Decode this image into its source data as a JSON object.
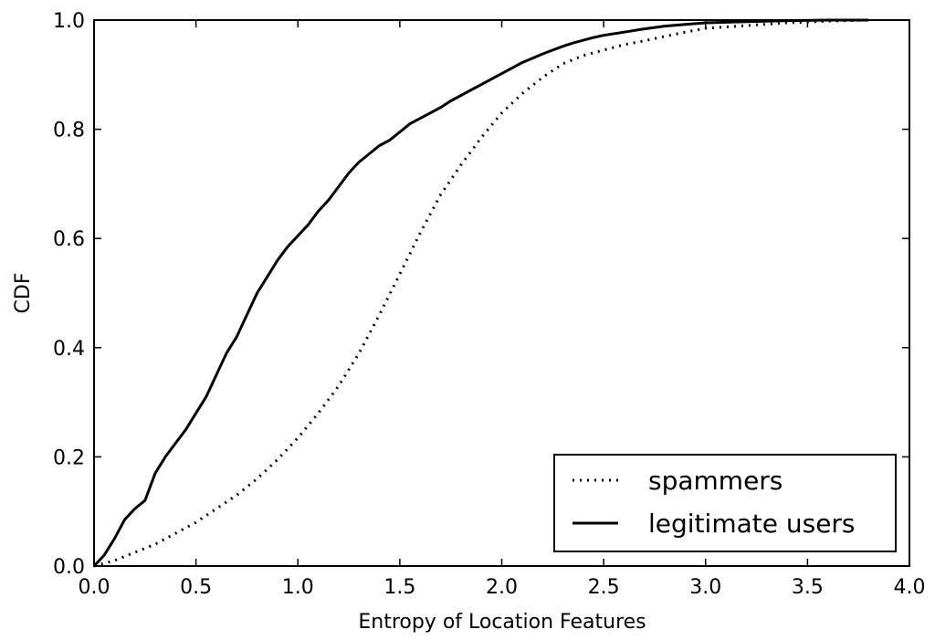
{
  "chart_data": {
    "type": "line",
    "title": "",
    "xlabel": "Entropy of Location Features",
    "ylabel": "CDF",
    "xlim": [
      0.0,
      4.0
    ],
    "ylim": [
      0.0,
      1.0
    ],
    "xticks": [
      "0.0",
      "0.5",
      "1.0",
      "1.5",
      "2.0",
      "2.5",
      "3.0",
      "3.5",
      "4.0"
    ],
    "yticks": [
      "0.0",
      "0.2",
      "0.4",
      "0.6",
      "0.8",
      "1.0"
    ],
    "grid": false,
    "legend": "lower-right",
    "series": [
      {
        "name": "spammers",
        "style": "dotted",
        "color": "#000000",
        "x": [
          0.0,
          0.1,
          0.2,
          0.3,
          0.4,
          0.5,
          0.6,
          0.7,
          0.8,
          0.9,
          1.0,
          1.1,
          1.2,
          1.3,
          1.4,
          1.5,
          1.6,
          1.7,
          1.8,
          1.9,
          2.0,
          2.1,
          2.2,
          2.3,
          2.4,
          2.5,
          2.6,
          2.7,
          2.8,
          2.9,
          3.0,
          3.2,
          3.4,
          3.6,
          3.8
        ],
        "y": [
          0.0,
          0.01,
          0.025,
          0.04,
          0.06,
          0.08,
          0.105,
          0.13,
          0.16,
          0.195,
          0.235,
          0.28,
          0.33,
          0.39,
          0.46,
          0.535,
          0.61,
          0.68,
          0.735,
          0.785,
          0.83,
          0.865,
          0.895,
          0.92,
          0.935,
          0.945,
          0.955,
          0.962,
          0.97,
          0.978,
          0.985,
          0.99,
          0.995,
          0.998,
          1.0
        ]
      },
      {
        "name": "legitimate users",
        "style": "solid",
        "color": "#000000",
        "x": [
          0.0,
          0.05,
          0.1,
          0.15,
          0.2,
          0.25,
          0.3,
          0.35,
          0.4,
          0.45,
          0.5,
          0.55,
          0.6,
          0.65,
          0.7,
          0.75,
          0.8,
          0.85,
          0.9,
          0.95,
          1.0,
          1.05,
          1.1,
          1.15,
          1.2,
          1.25,
          1.3,
          1.35,
          1.4,
          1.45,
          1.5,
          1.55,
          1.6,
          1.65,
          1.7,
          1.75,
          1.8,
          1.85,
          1.9,
          1.95,
          2.0,
          2.05,
          2.1,
          2.15,
          2.2,
          2.25,
          2.3,
          2.35,
          2.4,
          2.45,
          2.5,
          2.6,
          2.7,
          2.8,
          2.9,
          3.0,
          3.2,
          3.4,
          3.6,
          3.8
        ],
        "y": [
          0.0,
          0.02,
          0.05,
          0.085,
          0.105,
          0.12,
          0.17,
          0.2,
          0.225,
          0.25,
          0.28,
          0.31,
          0.35,
          0.39,
          0.42,
          0.46,
          0.5,
          0.53,
          0.56,
          0.585,
          0.605,
          0.625,
          0.65,
          0.67,
          0.695,
          0.72,
          0.74,
          0.755,
          0.77,
          0.78,
          0.795,
          0.81,
          0.82,
          0.83,
          0.84,
          0.852,
          0.862,
          0.872,
          0.882,
          0.892,
          0.902,
          0.912,
          0.922,
          0.93,
          0.938,
          0.945,
          0.952,
          0.958,
          0.963,
          0.968,
          0.972,
          0.978,
          0.984,
          0.989,
          0.992,
          0.995,
          0.997,
          0.999,
          1.0,
          1.0
        ]
      }
    ]
  }
}
